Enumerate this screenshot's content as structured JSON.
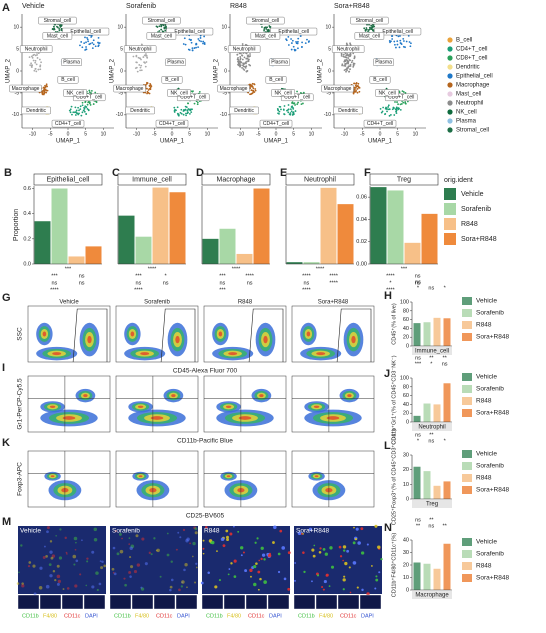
{
  "umap": {
    "panel": "A",
    "xlabel": "UMAP_1",
    "ylabel": "UMAP_2",
    "xlim": [
      -13,
      13
    ],
    "ylim": [
      -13,
      13
    ],
    "xticks": [
      -10,
      -5,
      0,
      5,
      10
    ],
    "yticks": [
      -10,
      -5,
      0,
      5,
      10
    ],
    "cell_types": [
      {
        "name": "B_cell",
        "color": "#e9a23b"
      },
      {
        "name": "CD4+T_cell",
        "color": "#1b9e77"
      },
      {
        "name": "CD8+T_cell",
        "color": "#2aa05a"
      },
      {
        "name": "Dendritic",
        "color": "#f3df8a"
      },
      {
        "name": "Epithelial_cell",
        "color": "#1f78c8"
      },
      {
        "name": "Macrophage",
        "color": "#b5651d"
      },
      {
        "name": "Mast_cell",
        "color": "#e7cbe0"
      },
      {
        "name": "Neutrophil",
        "color": "#8c8c8c"
      },
      {
        "name": "NK_cell",
        "color": "#0f6b3e"
      },
      {
        "name": "Plasma",
        "color": "#8fc1e3"
      },
      {
        "name": "Stromal_cell",
        "color": "#1e6e46"
      }
    ]
  },
  "legend_title": "orig.ident",
  "chart_data": [
    {
      "type": "bar",
      "panel": "B",
      "title": "Epithelial_cell",
      "ylabel": "Proportion",
      "categories": [
        "Vehicle",
        "Sorafenib",
        "R848",
        "Sora+R848"
      ],
      "colors": [
        "#2e7d4f",
        "#a8d8a6",
        "#f7c088",
        "#ef8a3c"
      ],
      "values": [
        0.34,
        0.6,
        0.06,
        0.14
      ],
      "ylim": [
        0,
        0.62
      ],
      "yticks": [
        {
          "value": 0,
          "label": "0.0"
        },
        {
          "value": 0.2,
          "label": "0.2"
        },
        {
          "value": 0.4,
          "label": "0.4"
        },
        {
          "value": 0.6,
          "label": "0.6"
        }
      ],
      "annotations": [
        "***",
        "***",
        "ns",
        "ns",
        "ns",
        "****"
      ]
    },
    {
      "type": "bar",
      "panel": "C",
      "title": "Immune_cell",
      "categories": [
        "Vehicle",
        "Sorafenib",
        "R848",
        "Sora+R848"
      ],
      "colors": [
        "#2e7d4f",
        "#a8d8a6",
        "#f7c088",
        "#ef8a3c"
      ],
      "values": [
        0.62,
        0.35,
        0.98,
        0.92
      ],
      "ylim": [
        0,
        1.0
      ],
      "annotations": [
        "****",
        "***",
        "*",
        "ns",
        "ns",
        "****"
      ]
    },
    {
      "type": "bar",
      "panel": "D",
      "title": "Macrophage",
      "categories": [
        "Vehicle",
        "Sorafenib",
        "R848",
        "Sora+R848"
      ],
      "colors": [
        "#2e7d4f",
        "#a8d8a6",
        "#f7c088",
        "#ef8a3c"
      ],
      "values": [
        0.05,
        0.07,
        0.02,
        0.15
      ],
      "ylim": [
        0,
        0.155
      ],
      "annotations": [
        "****",
        "***",
        "****",
        "ns",
        "ns",
        "***"
      ]
    },
    {
      "type": "bar",
      "panel": "E",
      "title": "Neutrophil",
      "categories": [
        "Vehicle",
        "Sorafenib",
        "R848",
        "Sora+R848"
      ],
      "colors": [
        "#2e7d4f",
        "#a8d8a6",
        "#f7c088",
        "#ef8a3c"
      ],
      "values": [
        0.01,
        0.01,
        0.42,
        0.33
      ],
      "ylim": [
        0,
        0.43
      ],
      "annotations": [
        "****",
        "****",
        "****",
        "ns",
        "****",
        "****"
      ]
    },
    {
      "type": "bar",
      "panel": "F",
      "title": "Treg",
      "categories": [
        "Vehicle",
        "Sorafenib",
        "R848",
        "Sora+R848"
      ],
      "colors": [
        "#2e7d4f",
        "#a8d8a6",
        "#f7c088",
        "#ef8a3c"
      ],
      "values": [
        0.069,
        0.066,
        0.019,
        0.045
      ],
      "ylim": [
        0,
        0.07
      ],
      "yticks": [
        {
          "value": 0,
          "label": "0.00"
        },
        {
          "value": 0.02,
          "label": "0.02"
        },
        {
          "value": 0.04,
          "label": "0.04"
        },
        {
          "value": 0.06,
          "label": "0.06"
        }
      ],
      "annotations": [
        "***",
        "****",
        "ns",
        "*",
        "ns",
        "****"
      ]
    },
    {
      "type": "bar",
      "panel": "H",
      "xlabel": "Immune_cell",
      "ylabel": "CD45⁺(% of live)",
      "categories": [
        "Vehicle",
        "Sorafenib",
        "R848",
        "Sora+R848"
      ],
      "colors": [
        "#5f9e7a",
        "#b9dcb7",
        "#f7c99a",
        "#f0975a"
      ],
      "values": [
        52,
        54,
        64,
        63
      ],
      "ylim": [
        0,
        100
      ],
      "yticks": [
        0,
        20,
        40,
        60,
        80,
        100
      ],
      "annotations": [
        "*",
        "ns",
        "*",
        "ns"
      ]
    },
    {
      "type": "bar",
      "panel": "J",
      "xlabel": "Neutrophil",
      "ylabel": "CD11b⁺Gr1⁺(% of CD45⁺CD3⁻NK⁻)",
      "categories": [
        "Vehicle",
        "Sorafenib",
        "R848",
        "Sora+R848"
      ],
      "colors": [
        "#5f9e7a",
        "#b9dcb7",
        "#f7c99a",
        "#f0975a"
      ],
      "values": [
        14,
        42,
        40,
        88
      ],
      "ylim": [
        0,
        100
      ],
      "yticks": [
        0,
        20,
        40,
        60,
        80,
        100
      ],
      "annotations": [
        "***",
        "*",
        "ns",
        "ns",
        "**",
        "**"
      ]
    },
    {
      "type": "bar",
      "panel": "L",
      "xlabel": "Treg",
      "ylabel": "CD25⁺Foxp3⁺(% of CD45⁺CD3⁺CD4⁺)",
      "categories": [
        "Vehicle",
        "Sorafenib",
        "R848",
        "Sora+R848"
      ],
      "colors": [
        "#5f9e7a",
        "#b9dcb7",
        "#f7c99a",
        "#f0975a"
      ],
      "values": [
        22,
        19,
        9,
        12
      ],
      "ylim": [
        0,
        30
      ],
      "yticks": [
        0,
        10,
        20,
        30
      ],
      "annotations": [
        "*",
        "ns",
        "*",
        "ns",
        "**"
      ]
    },
    {
      "type": "bar",
      "panel": "N",
      "xlabel": "Macrophage",
      "ylabel": "CD11b⁺F4/80⁺CD11c⁺(%)",
      "categories": [
        "Vehicle",
        "Sorafenib",
        "R848",
        "Sora+R848"
      ],
      "colors": [
        "#5f9e7a",
        "#b9dcb7",
        "#f7c99a",
        "#f0975a"
      ],
      "values": [
        22,
        21,
        17,
        37
      ],
      "ylim": [
        0,
        40
      ],
      "yticks": [
        0,
        10,
        20,
        30,
        40
      ],
      "annotations": [
        "**",
        "ns",
        "**",
        "ns",
        "**"
      ]
    }
  ],
  "flow": [
    {
      "panel": "G",
      "ylabel": "SSC",
      "xlabel": "CD45-Alexa Fluor 700"
    },
    {
      "panel": "I",
      "ylabel": "Gr1-PerCP-Cy5.5",
      "xlabel": "CD11b-Pacific Blue"
    },
    {
      "panel": "K",
      "ylabel": "Foxp3-APC",
      "xlabel": "CD25-BV605"
    }
  ],
  "images": {
    "panel": "M",
    "channels": [
      {
        "name": "CD11b",
        "color": "#3fbf3f"
      },
      {
        "name": "F4/80",
        "color": "#d8c020"
      },
      {
        "name": "CD11c",
        "color": "#e03030"
      },
      {
        "name": "DAPI",
        "color": "#3050d0"
      }
    ]
  }
}
